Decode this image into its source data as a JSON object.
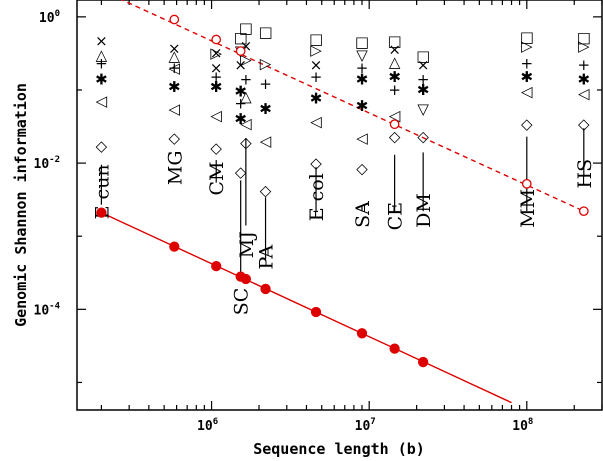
{
  "chart_data": {
    "type": "scatter",
    "xlabel": "Sequence length (b)",
    "ylabel": "Genomic Shannon information",
    "xscale": "log",
    "yscale": "log",
    "xlim": [
      140000,
      300000000
    ],
    "ylim": [
      4.2e-06,
      1.7
    ],
    "x_ticks": [
      {
        "value": 1000000,
        "base": "10",
        "exp": "6"
      },
      {
        "value": 10000000,
        "base": "10",
        "exp": "7"
      },
      {
        "value": 100000000,
        "base": "10",
        "exp": "8"
      }
    ],
    "y_ticks": [
      {
        "value": 0.0001,
        "base": "10",
        "exp": "-4"
      },
      {
        "value": 0.01,
        "base": "10",
        "exp": "-2"
      },
      {
        "value": 1,
        "base": "10",
        "exp": "0"
      }
    ],
    "grid": false,
    "legend": "none",
    "colors": {
      "red": "#dd0000",
      "black": "#000000"
    },
    "series": [
      {
        "style": "filled red circles, solid line",
        "points": [
          {
            "x": 200000,
            "y": 0.0021
          },
          {
            "x": 580000,
            "y": 0.00072
          },
          {
            "x": 1070000,
            "y": 0.00039
          },
          {
            "x": 1530000,
            "y": 0.00028
          },
          {
            "x": 1650000,
            "y": 0.00026
          },
          {
            "x": 2200000,
            "y": 0.00019
          },
          {
            "x": 4600000,
            "y": 9.2e-05
          },
          {
            "x": 9000000,
            "y": 4.7e-05
          },
          {
            "x": 14500000,
            "y": 2.9e-05
          },
          {
            "x": 22000000,
            "y": 1.9e-05
          }
        ],
        "fit": [
          [
            200000,
            0.0021
          ],
          [
            80000000,
            5.3e-06
          ]
        ]
      },
      {
        "style": "open red circles, dashed line",
        "points": [
          {
            "x": 580000,
            "y": 0.92
          },
          {
            "x": 1070000,
            "y": 0.49
          },
          {
            "x": 1530000,
            "y": 0.34
          },
          {
            "x": 14500000,
            "y": 0.034
          },
          {
            "x": 100000000,
            "y": 0.0052
          },
          {
            "x": 230000000,
            "y": 0.0022
          }
        ],
        "fit": [
          [
            230000,
            2.0
          ],
          [
            230000000,
            0.0022
          ]
        ]
      }
    ],
    "organisms": [
      {
        "label": "E cun",
        "x": 200000,
        "line_top": 0.0095,
        "line_bottom": 0.0027,
        "label_y": 0.0017,
        "markers": [
          {
            "s": "×",
            "y": 0.47
          },
          {
            "s": "△",
            "y": 0.3
          },
          {
            "s": "+",
            "y": 0.23
          },
          {
            "s": "✱",
            "y": 0.14
          },
          {
            "s": "◁",
            "y": 0.071
          },
          {
            "s": "◇",
            "y": 0.017
          }
        ]
      },
      {
        "label": "MG",
        "x": 580000,
        "line_top": null,
        "line_bottom": null,
        "label_y": 0.005,
        "markers": [
          {
            "s": "×",
            "y": 0.37
          },
          {
            "s": "△",
            "y": 0.29
          },
          {
            "s": "+",
            "y": 0.2
          },
          {
            "s": "◁",
            "y": 0.2
          },
          {
            "s": "✱",
            "y": 0.11
          },
          {
            "s": "◁",
            "y": 0.055
          },
          {
            "s": "◇",
            "y": 0.022
          }
        ]
      },
      {
        "label": "CM",
        "x": 1070000,
        "line_top": 0.011,
        "line_bottom": 0.0054,
        "label_y": 0.0036,
        "markers": [
          {
            "s": "×",
            "y": 0.32
          },
          {
            "s": "▷",
            "y": 0.32
          },
          {
            "s": "×",
            "y": 0.2
          },
          {
            "s": "+",
            "y": 0.15
          },
          {
            "s": "✱",
            "y": 0.11
          },
          {
            "s": "◁",
            "y": 0.045
          },
          {
            "s": "◇",
            "y": 0.016
          }
        ]
      },
      {
        "label": "SC",
        "x": 1530000,
        "line_top": 0.0058,
        "line_bottom": 0.00029,
        "label_y": 8.3e-05,
        "markers": [
          {
            "s": "□",
            "y": 0.52
          },
          {
            "s": "▽",
            "y": 0.34
          },
          {
            "s": "×",
            "y": 0.22
          },
          {
            "s": "✱",
            "y": 0.095
          },
          {
            "s": "+",
            "y": 0.065
          },
          {
            "s": "✱",
            "y": 0.04
          },
          {
            "s": "◇",
            "y": 0.0075
          }
        ]
      },
      {
        "label": "MJ",
        "x": 1650000,
        "line_top": 0.022,
        "line_bottom": 0.0014,
        "label_y": 0.0005,
        "markers": [
          {
            "s": "□",
            "y": 0.7
          },
          {
            "s": "×",
            "y": 0.4
          },
          {
            "s": "▷",
            "y": 0.26
          },
          {
            "s": "+",
            "y": 0.14
          },
          {
            "s": "△",
            "y": 0.082
          },
          {
            "s": "◁",
            "y": 0.035
          },
          {
            "s": "◇",
            "y": 0.019
          }
        ]
      },
      {
        "label": "PA",
        "x": 2200000,
        "line_top": 0.0034,
        "line_bottom": 0.00048,
        "label_y": 0.00035,
        "markers": [
          {
            "s": "□",
            "y": 0.62
          },
          {
            "s": "▷",
            "y": 0.23
          },
          {
            "s": "+",
            "y": 0.12
          },
          {
            "s": "✱",
            "y": 0.055
          },
          {
            "s": "◁",
            "y": 0.02
          },
          {
            "s": "◇",
            "y": 0.0042
          }
        ]
      },
      {
        "label": "E col",
        "x": 4600000,
        "line_top": 0.0088,
        "line_bottom": 0.0022,
        "label_y": 0.0016,
        "markers": [
          {
            "s": "□",
            "y": 0.5
          },
          {
            "s": "▷",
            "y": 0.35
          },
          {
            "s": "×",
            "y": 0.22
          },
          {
            "s": "+",
            "y": 0.15
          },
          {
            "s": "✱",
            "y": 0.077
          },
          {
            "s": "◁",
            "y": 0.037
          },
          {
            "s": "◇",
            "y": 0.01
          }
        ]
      },
      {
        "label": "SA",
        "x": 9000000,
        "line_top": 0.0026,
        "line_bottom": 0.0022,
        "label_y": 0.0013,
        "markers": [
          {
            "s": "□",
            "y": 0.45
          },
          {
            "s": "▽",
            "y": 0.3
          },
          {
            "s": "+",
            "y": 0.2
          },
          {
            "s": "✱",
            "y": 0.14
          },
          {
            "s": "✱",
            "y": 0.06
          },
          {
            "s": "◁",
            "y": 0.022
          },
          {
            "s": "◇",
            "y": 0.0085
          }
        ]
      },
      {
        "label": "CE",
        "x": 14500000,
        "line_top": 0.013,
        "line_bottom": 0.0021,
        "label_y": 0.0012,
        "markers": [
          {
            "s": "□",
            "y": 0.47
          },
          {
            "s": "×",
            "y": 0.36
          },
          {
            "s": "△",
            "y": 0.24
          },
          {
            "s": "✱",
            "y": 0.15
          },
          {
            "s": "+",
            "y": 0.1
          },
          {
            "s": "◁",
            "y": 0.045
          },
          {
            "s": "◇",
            "y": 0.023
          }
        ]
      },
      {
        "label": "DM",
        "x": 22000000,
        "line_top": 0.014,
        "line_bottom": 0.0022,
        "label_y": 0.0013,
        "markers": [
          {
            "s": "□",
            "y": 0.29
          },
          {
            "s": "×",
            "y": 0.22
          },
          {
            "s": "+",
            "y": 0.14
          },
          {
            "s": "✱",
            "y": 0.1
          },
          {
            "s": "▽",
            "y": 0.055
          },
          {
            "s": "◇",
            "y": 0.023
          }
        ]
      },
      {
        "label": "MM",
        "x": 100000000,
        "line_top": 0.023,
        "line_bottom": 0.0022,
        "label_y": 0.0013,
        "markers": [
          {
            "s": "□",
            "y": 0.53
          },
          {
            "s": "▷",
            "y": 0.4
          },
          {
            "s": "+",
            "y": 0.23
          },
          {
            "s": "✱",
            "y": 0.15
          },
          {
            "s": "◁",
            "y": 0.095
          },
          {
            "s": "◇",
            "y": 0.034
          }
        ]
      },
      {
        "label": "HS",
        "x": 230000000,
        "line_top": 0.03,
        "line_bottom": 0.0065,
        "label_y": 0.0045,
        "markers": [
          {
            "s": "□",
            "y": 0.52
          },
          {
            "s": "▷",
            "y": 0.4
          },
          {
            "s": "+",
            "y": 0.22
          },
          {
            "s": "✱",
            "y": 0.14
          },
          {
            "s": "◁",
            "y": 0.089
          },
          {
            "s": "◇",
            "y": 0.034
          }
        ]
      }
    ]
  }
}
